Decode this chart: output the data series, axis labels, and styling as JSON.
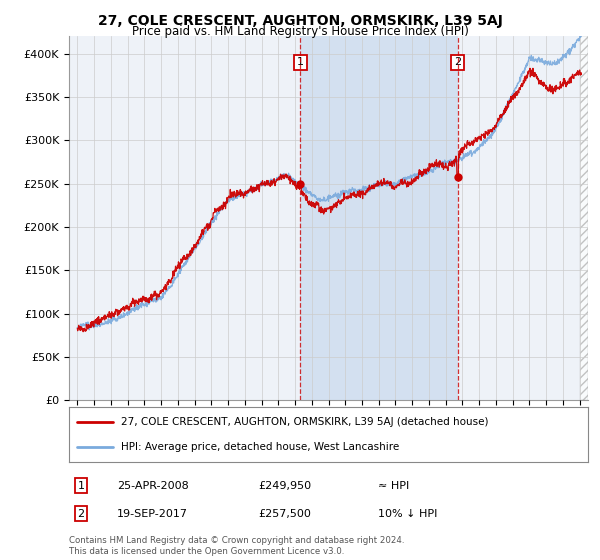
{
  "title": "27, COLE CRESCENT, AUGHTON, ORMSKIRK, L39 5AJ",
  "subtitle": "Price paid vs. HM Land Registry's House Price Index (HPI)",
  "legend_line1": "27, COLE CRESCENT, AUGHTON, ORMSKIRK, L39 5AJ (detached house)",
  "legend_line2": "HPI: Average price, detached house, West Lancashire",
  "sale1_label": "1",
  "sale1_date": "25-APR-2008",
  "sale1_price": "£249,950",
  "sale1_hpi": "≈ HPI",
  "sale1_year": 2008.32,
  "sale1_value": 249950,
  "sale2_label": "2",
  "sale2_date": "19-SEP-2017",
  "sale2_price": "£257,500",
  "sale2_hpi": "10% ↓ HPI",
  "sale2_year": 2017.72,
  "sale2_value": 257500,
  "footer1": "Contains HM Land Registry data © Crown copyright and database right 2024.",
  "footer2": "This data is licensed under the Open Government Licence v3.0.",
  "ylim_min": 0,
  "ylim_max": 420000,
  "xlim_min": 1994.5,
  "xlim_max": 2025.5,
  "grid_color": "#cccccc",
  "hpi_color": "#7aaadd",
  "sale_color": "#cc0000",
  "background_color": "#ffffff",
  "plot_bg_color": "#eef2f8",
  "shade_color": "#d0dff0"
}
